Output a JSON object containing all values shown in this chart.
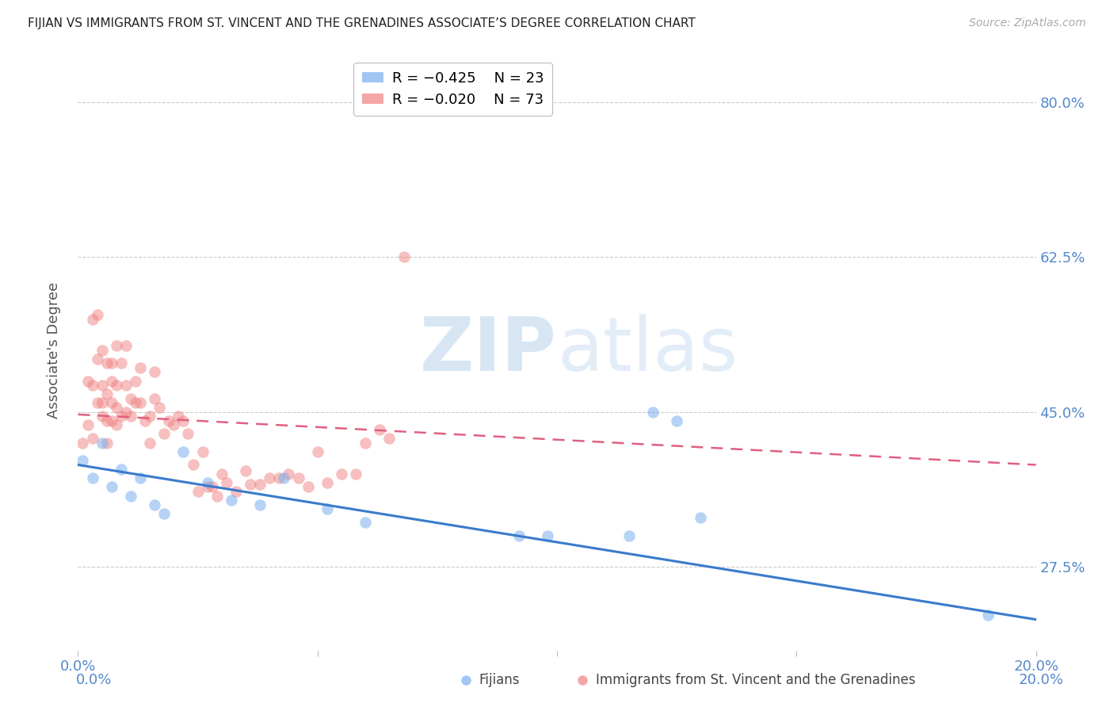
{
  "title": "FIJIAN VS IMMIGRANTS FROM ST. VINCENT AND THE GRENADINES ASSOCIATE’S DEGREE CORRELATION CHART",
  "source": "Source: ZipAtlas.com",
  "ylabel": "Associate's Degree",
  "ytick_labels": [
    "80.0%",
    "62.5%",
    "45.0%",
    "27.5%"
  ],
  "ytick_values": [
    0.8,
    0.625,
    0.45,
    0.275
  ],
  "xlim": [
    0.0,
    0.2
  ],
  "ylim": [
    0.18,
    0.86
  ],
  "fijians_x": [
    0.001,
    0.003,
    0.005,
    0.007,
    0.009,
    0.011,
    0.013,
    0.016,
    0.018,
    0.022,
    0.027,
    0.032,
    0.038,
    0.043,
    0.052,
    0.06,
    0.092,
    0.098,
    0.115,
    0.12,
    0.125,
    0.13,
    0.19
  ],
  "fijians_y": [
    0.395,
    0.375,
    0.415,
    0.365,
    0.385,
    0.355,
    0.375,
    0.345,
    0.335,
    0.405,
    0.37,
    0.35,
    0.345,
    0.375,
    0.34,
    0.325,
    0.31,
    0.31,
    0.31,
    0.45,
    0.44,
    0.33,
    0.22
  ],
  "svg_x": [
    0.001,
    0.002,
    0.002,
    0.003,
    0.003,
    0.003,
    0.004,
    0.004,
    0.004,
    0.005,
    0.005,
    0.005,
    0.005,
    0.006,
    0.006,
    0.006,
    0.006,
    0.007,
    0.007,
    0.007,
    0.007,
    0.008,
    0.008,
    0.008,
    0.008,
    0.009,
    0.009,
    0.01,
    0.01,
    0.01,
    0.011,
    0.011,
    0.012,
    0.012,
    0.013,
    0.013,
    0.014,
    0.015,
    0.015,
    0.016,
    0.016,
    0.017,
    0.018,
    0.019,
    0.02,
    0.021,
    0.022,
    0.023,
    0.024,
    0.025,
    0.026,
    0.027,
    0.028,
    0.029,
    0.03,
    0.031,
    0.033,
    0.035,
    0.036,
    0.038,
    0.04,
    0.042,
    0.044,
    0.046,
    0.048,
    0.05,
    0.052,
    0.055,
    0.058,
    0.06,
    0.063,
    0.065,
    0.068
  ],
  "svg_y": [
    0.415,
    0.435,
    0.485,
    0.42,
    0.48,
    0.555,
    0.46,
    0.51,
    0.56,
    0.445,
    0.46,
    0.48,
    0.52,
    0.415,
    0.44,
    0.47,
    0.505,
    0.44,
    0.46,
    0.485,
    0.505,
    0.435,
    0.455,
    0.48,
    0.525,
    0.445,
    0.505,
    0.45,
    0.48,
    0.525,
    0.445,
    0.465,
    0.46,
    0.485,
    0.5,
    0.46,
    0.44,
    0.415,
    0.445,
    0.465,
    0.495,
    0.455,
    0.425,
    0.44,
    0.435,
    0.445,
    0.44,
    0.425,
    0.39,
    0.36,
    0.405,
    0.365,
    0.365,
    0.355,
    0.38,
    0.37,
    0.36,
    0.383,
    0.368,
    0.368,
    0.375,
    0.375,
    0.38,
    0.375,
    0.365,
    0.405,
    0.37,
    0.38,
    0.38,
    0.415,
    0.43,
    0.42,
    0.625
  ],
  "fijian_line_x": [
    0.0,
    0.2
  ],
  "fijian_line_y": [
    0.39,
    0.215
  ],
  "svg_line_x": [
    0.0,
    0.2
  ],
  "svg_line_y": [
    0.447,
    0.39
  ],
  "fijian_color": "#7aaff0",
  "svg_color": "#f08080",
  "fijian_line_color": "#3a7bcc",
  "svg_line_color": "#e06080",
  "grid_color": "#cccccc",
  "background_color": "#ffffff",
  "title_color": "#222222",
  "axis_label_color": "#5588cc",
  "watermark_zip": "ZIP",
  "watermark_atlas": "atlas",
  "legend_r1": "R = −0.425",
  "legend_n1": "N = 23",
  "legend_r2": "R = −0.020",
  "legend_n2": "N = 73"
}
